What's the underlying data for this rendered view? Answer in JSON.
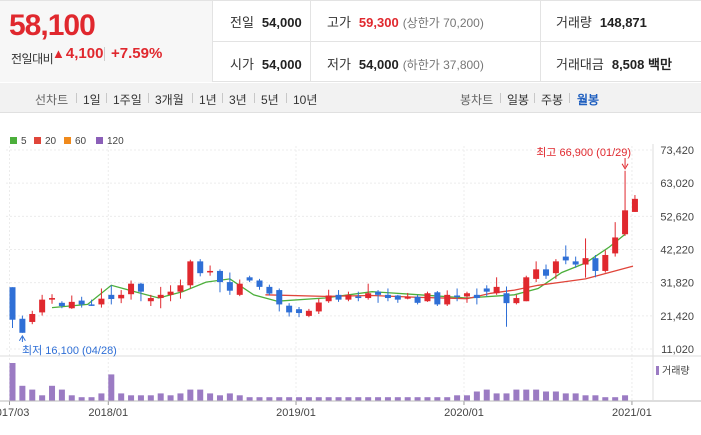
{
  "quote": {
    "price": "58,100",
    "change_label": "전일대비",
    "change_amount": "4,100",
    "change_percent": "+7.59%",
    "prev_close_label": "전일",
    "prev_close": "54,000",
    "open_label": "시가",
    "open": "54,000",
    "high_label": "고가",
    "high": "59,300",
    "upper_limit": "(상한가 70,200)",
    "low_label": "저가",
    "low": "54,000",
    "lower_limit": "(하한가 37,800)",
    "volume_label": "거래량",
    "volume": "148,871",
    "amount_label": "거래대금",
    "amount": "8,508 백만"
  },
  "toolbar": {
    "line_label": "선차트",
    "periods": [
      "1일",
      "1주일",
      "3개월",
      "1년",
      "3년",
      "5년",
      "10년"
    ],
    "candle_label": "봉차트",
    "candle_types": [
      "일봉",
      "주봉",
      "월봉"
    ],
    "active_candle": "월봉"
  },
  "legend": [
    {
      "label": "5",
      "color": "#4caf3b"
    },
    {
      "label": "20",
      "color": "#e0453a"
    },
    {
      "label": "60",
      "color": "#f08a1c"
    },
    {
      "label": "120",
      "color": "#8b5fb8"
    }
  ],
  "annotations": {
    "max": "최고 66,900 (01/29)",
    "min": "최저 16,100 (04/28)",
    "volume_label": "거래량"
  },
  "colors": {
    "up": "#e0282e",
    "down": "#2f6fd6",
    "volume": "#9b7bc3"
  },
  "chart_data": {
    "type": "candlestick",
    "ylim": [
      11020,
      73420
    ],
    "y_ticks": [
      73420,
      63020,
      52620,
      42220,
      31820,
      21420,
      11020
    ],
    "x_ticks": [
      "2017/03",
      "2018/01",
      "2019/01",
      "2020/01",
      "2021/01"
    ],
    "candles": [
      [
        30400,
        20200,
        30400,
        17600,
        "d"
      ],
      [
        20500,
        16100,
        21500,
        16100,
        "d"
      ],
      [
        19500,
        22000,
        23000,
        18800,
        "u"
      ],
      [
        22500,
        26500,
        28000,
        21500,
        "u"
      ],
      [
        26500,
        27000,
        28200,
        25200,
        "u"
      ],
      [
        25500,
        24500,
        26000,
        23800,
        "d"
      ],
      [
        23800,
        25800,
        27800,
        23600,
        "u"
      ],
      [
        26200,
        25000,
        27400,
        24000,
        "d"
      ],
      [
        25000,
        24800,
        26500,
        24500,
        "d"
      ],
      [
        25000,
        26800,
        30000,
        24000,
        "u"
      ],
      [
        28000,
        26700,
        31000,
        25000,
        "d"
      ],
      [
        26900,
        28000,
        29500,
        25400,
        "u"
      ],
      [
        28200,
        31500,
        32500,
        26500,
        "u"
      ],
      [
        31500,
        29000,
        31800,
        26000,
        "d"
      ],
      [
        26000,
        27000,
        28000,
        24500,
        "u"
      ],
      [
        27000,
        28000,
        30500,
        23800,
        "u"
      ],
      [
        28000,
        29000,
        31000,
        26000,
        "u"
      ],
      [
        29000,
        31000,
        32800,
        26800,
        "u"
      ],
      [
        31000,
        38500,
        39000,
        30000,
        "u"
      ],
      [
        38500,
        34800,
        39200,
        33800,
        "d"
      ],
      [
        35500,
        35500,
        37200,
        34000,
        "u"
      ],
      [
        35500,
        32000,
        36000,
        28800,
        "d"
      ],
      [
        32000,
        29300,
        35000,
        28000,
        "d"
      ],
      [
        28000,
        31500,
        32800,
        27600,
        "u"
      ],
      [
        33500,
        32500,
        34000,
        32000,
        "d"
      ],
      [
        32500,
        30500,
        33000,
        29600,
        "d"
      ],
      [
        30500,
        28400,
        31200,
        27800,
        "d"
      ],
      [
        29500,
        25000,
        30000,
        22800,
        "d"
      ],
      [
        24600,
        22500,
        25400,
        21200,
        "d"
      ],
      [
        23500,
        22300,
        24200,
        21000,
        "d"
      ],
      [
        21400,
        23000,
        23600,
        21000,
        "u"
      ],
      [
        22800,
        25600,
        26800,
        22000,
        "u"
      ],
      [
        26000,
        27800,
        29600,
        25500,
        "u"
      ],
      [
        28000,
        26500,
        29500,
        25800,
        "d"
      ],
      [
        26500,
        28000,
        29000,
        26000,
        "u"
      ],
      [
        27500,
        27000,
        29000,
        26000,
        "d"
      ],
      [
        27000,
        28500,
        31500,
        26500,
        "u"
      ],
      [
        29000,
        28000,
        29500,
        25500,
        "d"
      ],
      [
        28000,
        27000,
        30000,
        26000,
        "d"
      ],
      [
        27800,
        26500,
        28000,
        25500,
        "d"
      ],
      [
        26800,
        27400,
        28600,
        26600,
        "u"
      ],
      [
        27400,
        25500,
        28000,
        25000,
        "d"
      ],
      [
        26000,
        28500,
        29000,
        25800,
        "u"
      ],
      [
        28800,
        25000,
        29200,
        24500,
        "d"
      ],
      [
        25000,
        28000,
        29400,
        24500,
        "u"
      ],
      [
        27800,
        27500,
        30000,
        26000,
        "d"
      ],
      [
        27500,
        28500,
        29000,
        25500,
        "u"
      ],
      [
        28000,
        27000,
        30000,
        25000,
        "d"
      ],
      [
        30000,
        29000,
        31000,
        27500,
        "d"
      ],
      [
        28500,
        30500,
        33500,
        28000,
        "u"
      ],
      [
        28500,
        25400,
        30600,
        18000,
        "d"
      ],
      [
        25400,
        27000,
        28000,
        25000,
        "u"
      ],
      [
        26000,
        33500,
        34000,
        26000,
        "u"
      ],
      [
        33000,
        36000,
        38500,
        32000,
        "u"
      ],
      [
        36000,
        34000,
        37500,
        33000,
        "d"
      ],
      [
        34800,
        38500,
        39200,
        33000,
        "u"
      ],
      [
        40000,
        38800,
        43500,
        37600,
        "d"
      ],
      [
        38500,
        37500,
        40000,
        36500,
        "d"
      ],
      [
        37500,
        39500,
        45700,
        33400,
        "u"
      ],
      [
        39500,
        35500,
        40500,
        33500,
        "d"
      ],
      [
        35500,
        40500,
        42000,
        35000,
        "u"
      ],
      [
        41000,
        46000,
        50800,
        40000,
        "u"
      ],
      [
        47000,
        54500,
        66900,
        46500,
        "u"
      ],
      [
        54000,
        58100,
        59300,
        54000,
        "u"
      ]
    ],
    "ma5": [
      [
        15,
        24
      ],
      [
        24,
        25
      ],
      [
        30,
        31
      ],
      [
        36,
        29
      ],
      [
        42,
        27
      ],
      [
        48,
        29
      ],
      [
        54,
        32
      ],
      [
        60,
        33
      ],
      [
        66,
        28
      ],
      [
        72,
        26
      ],
      [
        84,
        27
      ],
      [
        96,
        29
      ],
      [
        108,
        28
      ],
      [
        120,
        27
      ],
      [
        132,
        28
      ],
      [
        138,
        30
      ],
      [
        144,
        35
      ],
      [
        150,
        38
      ],
      [
        156,
        43
      ],
      [
        160,
        47
      ]
    ],
    "ma20": [
      [
        69,
        28
      ],
      [
        84,
        27.5
      ],
      [
        96,
        27.8
      ],
      [
        108,
        27.2
      ],
      [
        120,
        26.8
      ],
      [
        126,
        28.5
      ],
      [
        132,
        29.5
      ],
      [
        138,
        31
      ],
      [
        144,
        32
      ],
      [
        150,
        33
      ],
      [
        156,
        35
      ],
      [
        162,
        37
      ]
    ],
    "volume": [
      10,
      4,
      3,
      1.5,
      4,
      3,
      1.5,
      1,
      1,
      2,
      7,
      2,
      1.5,
      1.5,
      1.5,
      2,
      1.5,
      2,
      3,
      3,
      2,
      1.5,
      2,
      1.5,
      1,
      1,
      1,
      1,
      1,
      1,
      1,
      1,
      1,
      1,
      1,
      1,
      1,
      1,
      1,
      1,
      1,
      1,
      1,
      1,
      1,
      1.5,
      1.5,
      2.5,
      3,
      2,
      2,
      3,
      3,
      3,
      2.5,
      2.5,
      2,
      2,
      1.5,
      1.5,
      1,
      1,
      1.5
    ]
  }
}
